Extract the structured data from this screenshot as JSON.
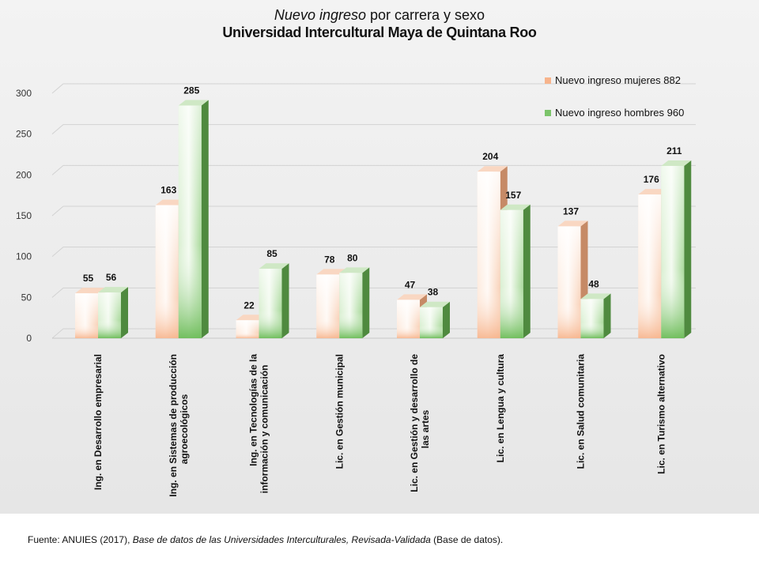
{
  "title": {
    "italic": "Nuevo ingreso",
    "rest": " por carrera y sexo",
    "line2": "Universidad Intercultural Maya de Quintana Roo"
  },
  "source": {
    "prefix": "Fuente: ANUIES (2017), ",
    "italic": "Base de datos de las Universidades  Interculturales, Revisada-Validada",
    "suffix": "  (Base de datos)."
  },
  "colors": {
    "women": "#f7b48c",
    "men": "#7cc46a",
    "women_dark": "#c68a66",
    "men_dark": "#4f8a3f"
  },
  "chart_data": {
    "type": "bar",
    "ylim": [
      0,
      300
    ],
    "yticks": [
      0,
      50,
      100,
      150,
      200,
      250,
      300
    ],
    "grid": true,
    "legend_position": "top-right",
    "categories": [
      "Ing. en Desarrollo empresarial",
      "Ing. en Sistemas de producción agroecológicos",
      "Ing. en Tecnologías de la información y comunicación",
      "Lic. en Gestión municipal",
      "Lic. en Gestión y desarrollo de las artes",
      "Lic. en Lengua y cultura",
      "Lic. en Salud comunitaria",
      "Lic. en Turismo alternativo"
    ],
    "category_lines": [
      [
        "Ing. en Desarrollo empresarial"
      ],
      [
        "Ing. en Sistemas de producción",
        "agroecológicos"
      ],
      [
        "Ing. en Tecnologías de la",
        "información y comunicación"
      ],
      [
        "Lic. en Gestión municipal"
      ],
      [
        "Lic. en Gestión y desarrollo de",
        "las artes"
      ],
      [
        "Lic. en Lengua y cultura"
      ],
      [
        "Lic. en Salud comunitaria"
      ],
      [
        "Lic. en Turismo alternativo"
      ]
    ],
    "series": [
      {
        "name": "Nuevo ingreso mujeres  882",
        "values": [
          55,
          163,
          22,
          78,
          47,
          204,
          137,
          176
        ]
      },
      {
        "name": "Nuevo ingreso hombres  960",
        "values": [
          56,
          285,
          85,
          80,
          38,
          157,
          48,
          211
        ]
      }
    ]
  }
}
